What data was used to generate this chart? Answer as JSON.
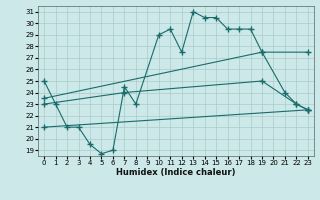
{
  "xlabel": "Humidex (Indice chaleur)",
  "xlim": [
    -0.5,
    23.5
  ],
  "ylim": [
    18.5,
    31.5
  ],
  "yticks": [
    19,
    20,
    21,
    22,
    23,
    24,
    25,
    26,
    27,
    28,
    29,
    30,
    31
  ],
  "xticks": [
    0,
    1,
    2,
    3,
    4,
    5,
    6,
    7,
    8,
    9,
    10,
    11,
    12,
    13,
    14,
    15,
    16,
    17,
    18,
    19,
    20,
    21,
    22,
    23
  ],
  "background_color": "#cce8e8",
  "grid_color": "#aacccc",
  "line_color": "#1a6b6b",
  "line1_x": [
    0,
    1,
    2,
    3,
    4,
    5,
    6,
    7,
    8,
    10,
    11,
    12,
    13,
    14,
    15,
    16,
    17,
    18,
    19,
    21,
    22,
    23
  ],
  "line1_y": [
    25.0,
    23.0,
    21.0,
    21.0,
    19.5,
    18.7,
    19.0,
    24.5,
    23.0,
    29.0,
    29.5,
    27.5,
    31.0,
    30.5,
    30.5,
    29.5,
    29.5,
    29.5,
    27.5,
    24.0,
    23.0,
    22.5
  ],
  "line2_x": [
    0,
    7,
    19,
    22,
    23
  ],
  "line2_y": [
    23.0,
    24.0,
    25.0,
    23.0,
    22.5
  ],
  "line3_x": [
    0,
    23
  ],
  "line3_y": [
    21.0,
    22.5
  ],
  "line4_x": [
    0,
    19,
    23
  ],
  "line4_y": [
    23.5,
    27.5,
    27.5
  ]
}
